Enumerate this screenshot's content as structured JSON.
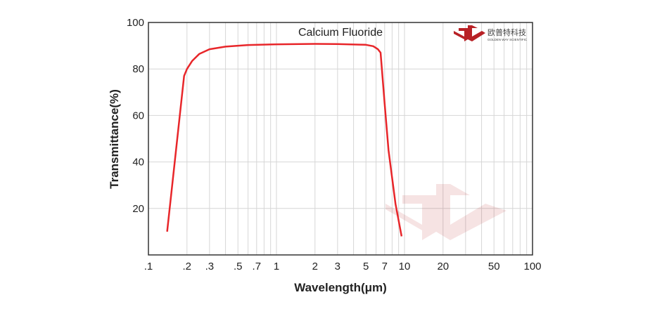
{
  "chart_data": {
    "type": "line",
    "title": "Calcium Fluoride",
    "xlabel": "Wavelength(μm)",
    "ylabel": "Transmittance(%)",
    "xscale": "log",
    "xlim": [
      0.1,
      100
    ],
    "ylim": [
      0,
      100
    ],
    "grid": true,
    "x_tick_values": [
      0.1,
      0.2,
      0.3,
      0.5,
      0.7,
      1,
      2,
      3,
      5,
      7,
      10,
      20,
      50,
      100
    ],
    "x_tick_labels": [
      ".1",
      ".2",
      ".3",
      ".5",
      ".7",
      "1",
      "2",
      "3",
      "5",
      "7",
      "10",
      "20",
      "50",
      "100"
    ],
    "y_tick_values": [
      20,
      40,
      60,
      80,
      100
    ],
    "y_tick_labels": [
      "20",
      "40",
      "60",
      "80",
      "100"
    ],
    "series": [
      {
        "color": "#e8262a",
        "x": [
          0.14,
          0.19,
          0.2,
          0.22,
          0.25,
          0.3,
          0.4,
          0.6,
          1,
          2,
          3,
          5,
          5.7,
          6.2,
          6.5,
          7.0,
          7.5,
          8.5,
          9.5
        ],
        "y": [
          10,
          77,
          80,
          83.5,
          86.5,
          88.5,
          89.6,
          90.3,
          90.6,
          90.8,
          90.7,
          90.4,
          89.8,
          88.5,
          87,
          65,
          45,
          22,
          8
        ]
      }
    ]
  },
  "logo": {
    "name_cn": "欧普特科技",
    "name_en": "GOLDEN WAY SCIENTIFIC",
    "color": "#b82126"
  }
}
